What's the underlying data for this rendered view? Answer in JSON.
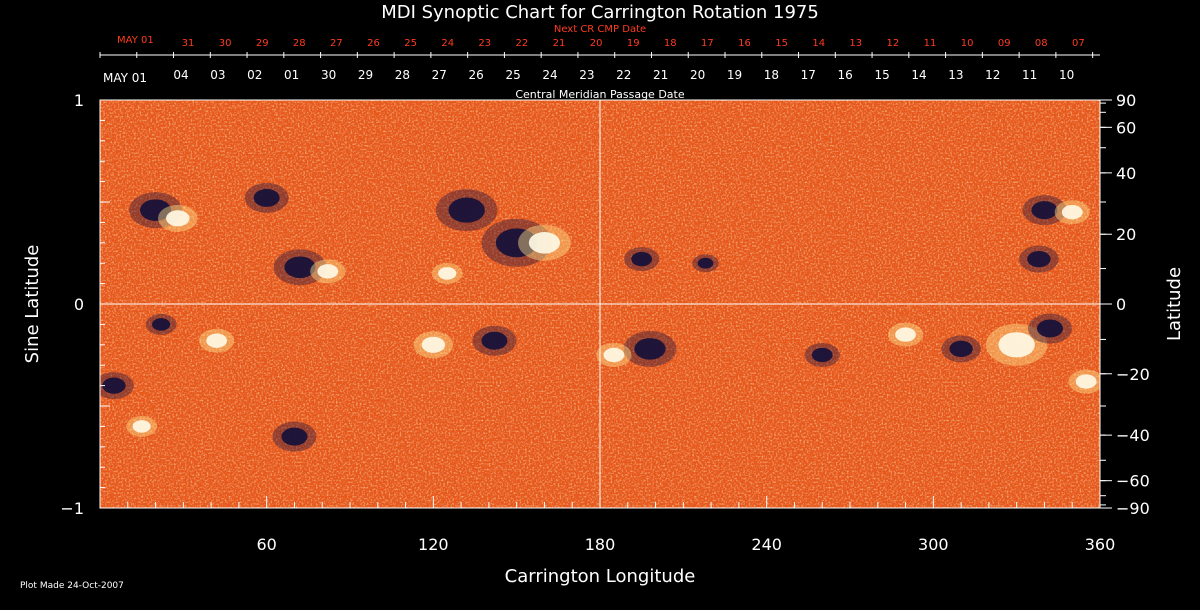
{
  "colors": {
    "background": "#000000",
    "axis": "#ffffff",
    "next_cr": "#ff3b1f",
    "map_base": "#e8571a"
  },
  "chart_data": {
    "type": "heatmap",
    "title": "MDI Synoptic Chart for Carrington Rotation 1975",
    "xlabel": "Carrington Longitude",
    "ylabel_left": "Sine Latitude",
    "ylabel_right": "Latitude",
    "xlim": [
      0,
      360
    ],
    "ylim": [
      -1,
      1
    ],
    "x_ticks": [
      60,
      120,
      180,
      240,
      300,
      360
    ],
    "y_ticks_left": [
      -1,
      0,
      1
    ],
    "y_ticks_left_labels": [
      "−1",
      "0",
      "1"
    ],
    "y_ticks_right": [
      90,
      60,
      40,
      20,
      0,
      -20,
      -40,
      -60,
      -90
    ],
    "y_ticks_right_labels": [
      "90",
      "60",
      "40",
      "20",
      "0",
      "−20",
      "−40",
      "−60",
      "−90"
    ],
    "grid": {
      "vertical_at": 180,
      "horizontal_at": 0
    },
    "next_cr_label": "Next CR CMP Date",
    "next_cr_start": "MAY 01",
    "next_cr_dates": [
      "31",
      "30",
      "29",
      "28",
      "27",
      "26",
      "25",
      "24",
      "23",
      "22",
      "21",
      "20",
      "19",
      "18",
      "17",
      "16",
      "15",
      "14",
      "13",
      "12",
      "11",
      "10",
      "09",
      "08",
      "07"
    ],
    "cmp_label": "Central Meridian Passage Date",
    "cmp_start": "MAY 01",
    "cmp_dates": [
      "04",
      "03",
      "02",
      "01",
      "30",
      "29",
      "28",
      "27",
      "26",
      "25",
      "24",
      "23",
      "22",
      "21",
      "20",
      "19",
      "18",
      "17",
      "16",
      "15",
      "14",
      "13",
      "12",
      "11",
      "10"
    ],
    "flux_regions": [
      {
        "lon": 20,
        "lat": 0.46,
        "r": 12,
        "pol": "neg"
      },
      {
        "lon": 28,
        "lat": 0.42,
        "r": 9,
        "pol": "pos"
      },
      {
        "lon": 60,
        "lat": 0.52,
        "r": 10,
        "pol": "neg"
      },
      {
        "lon": 72,
        "lat": 0.18,
        "r": 12,
        "pol": "neg"
      },
      {
        "lon": 82,
        "lat": 0.16,
        "r": 8,
        "pol": "pos"
      },
      {
        "lon": 132,
        "lat": 0.46,
        "r": 14,
        "pol": "neg"
      },
      {
        "lon": 150,
        "lat": 0.3,
        "r": 16,
        "pol": "neg"
      },
      {
        "lon": 160,
        "lat": 0.3,
        "r": 12,
        "pol": "pos"
      },
      {
        "lon": 125,
        "lat": 0.15,
        "r": 7,
        "pol": "pos"
      },
      {
        "lon": 195,
        "lat": 0.22,
        "r": 8,
        "pol": "neg"
      },
      {
        "lon": 218,
        "lat": 0.2,
        "r": 6,
        "pol": "neg"
      },
      {
        "lon": 340,
        "lat": 0.46,
        "r": 10,
        "pol": "neg"
      },
      {
        "lon": 350,
        "lat": 0.45,
        "r": 8,
        "pol": "pos"
      },
      {
        "lon": 338,
        "lat": 0.22,
        "r": 9,
        "pol": "neg"
      },
      {
        "lon": 22,
        "lat": -0.1,
        "r": 7,
        "pol": "neg"
      },
      {
        "lon": 42,
        "lat": -0.18,
        "r": 8,
        "pol": "pos"
      },
      {
        "lon": 5,
        "lat": -0.4,
        "r": 9,
        "pol": "neg"
      },
      {
        "lon": 15,
        "lat": -0.6,
        "r": 7,
        "pol": "pos"
      },
      {
        "lon": 120,
        "lat": -0.2,
        "r": 9,
        "pol": "pos"
      },
      {
        "lon": 142,
        "lat": -0.18,
        "r": 10,
        "pol": "neg"
      },
      {
        "lon": 198,
        "lat": -0.22,
        "r": 12,
        "pol": "neg"
      },
      {
        "lon": 185,
        "lat": -0.25,
        "r": 8,
        "pol": "pos"
      },
      {
        "lon": 260,
        "lat": -0.25,
        "r": 8,
        "pol": "neg"
      },
      {
        "lon": 290,
        "lat": -0.15,
        "r": 8,
        "pol": "pos"
      },
      {
        "lon": 310,
        "lat": -0.22,
        "r": 9,
        "pol": "neg"
      },
      {
        "lon": 330,
        "lat": -0.2,
        "r": 14,
        "pol": "pos"
      },
      {
        "lon": 342,
        "lat": -0.12,
        "r": 10,
        "pol": "neg"
      },
      {
        "lon": 355,
        "lat": -0.38,
        "r": 8,
        "pol": "pos"
      },
      {
        "lon": 70,
        "lat": -0.65,
        "r": 10,
        "pol": "neg"
      }
    ]
  },
  "footer": {
    "plot_made": "Plot Made 24-Oct-2007"
  }
}
